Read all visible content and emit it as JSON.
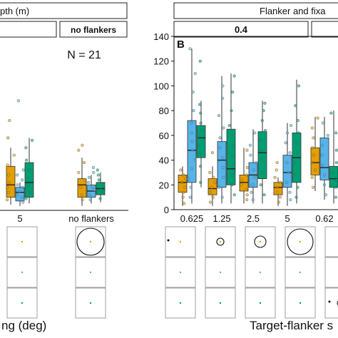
{
  "chart_data": [
    {
      "type": "box",
      "panel": "left",
      "strip_title": "pth (m)",
      "facets": [
        "no flankers"
      ],
      "annotation": "N = 21",
      "categories": [
        "5",
        "no flankers"
      ],
      "xlabel": "ng (deg)",
      "boxes": [
        {
          "category": "5",
          "fill": "orange",
          "q1": 10,
          "median": 20,
          "q3": 35,
          "whisker_low": 4,
          "whisker_high": 50,
          "points": [
            8,
            14,
            18,
            22,
            28,
            36,
            44,
            58,
            72
          ]
        },
        {
          "category": "5",
          "fill": "blue",
          "q1": 7,
          "median": 14,
          "q3": 18,
          "whisker_low": 3,
          "whisker_high": 22,
          "points": [
            6,
            10,
            12,
            15,
            18,
            20,
            24,
            28,
            32,
            88
          ]
        },
        {
          "category": "5",
          "fill": "green",
          "q1": 10,
          "median": 22,
          "q3": 38,
          "whisker_low": 5,
          "whisker_high": 58,
          "points": [
            9,
            14,
            20,
            26,
            32,
            40,
            50,
            56
          ]
        },
        {
          "category": "no flankers",
          "fill": "orange",
          "q1": 10,
          "median": 20,
          "q3": 25,
          "whisker_low": 3,
          "whisker_high": 42,
          "points": [
            8,
            12,
            18,
            24,
            30,
            38,
            48,
            52
          ]
        },
        {
          "category": "no flankers",
          "fill": "blue",
          "q1": 10,
          "median": 15,
          "q3": 20,
          "whisker_low": 5,
          "whisker_high": 28,
          "points": [
            8,
            12,
            16,
            18,
            22,
            26,
            30,
            34
          ]
        },
        {
          "category": "no flankers",
          "fill": "green",
          "q1": 12,
          "median": 17,
          "q3": 22,
          "whisker_low": 6,
          "whisker_high": 30,
          "points": [
            9,
            13,
            16,
            20,
            24,
            28,
            32
          ]
        }
      ]
    },
    {
      "type": "box",
      "panel": "right",
      "panel_label": "B",
      "strip_title": "Flanker and fixa",
      "facets": [
        "0.4"
      ],
      "categories": [
        "0.625",
        "1.25",
        "2.5",
        "5",
        "0.62"
      ],
      "xlabel": "Target-flanker s",
      "ylim": [
        0,
        140
      ],
      "yticks": [
        0,
        20,
        40,
        60,
        80,
        100,
        120,
        140
      ],
      "boxes": [
        {
          "category": "0.625",
          "fill": "orange",
          "q1": 14,
          "median": 22,
          "q3": 28,
          "whisker_low": 3,
          "whisker_high": 35,
          "points": [
            5,
            10,
            14,
            18,
            22,
            25,
            28,
            32
          ]
        },
        {
          "category": "0.625",
          "fill": "blue",
          "q1": 22,
          "median": 48,
          "q3": 72,
          "whisker_low": 5,
          "whisker_high": 130,
          "points": [
            10,
            18,
            25,
            33,
            40,
            48,
            55,
            62,
            70,
            80,
            95,
            110,
            130
          ]
        },
        {
          "category": "0.625",
          "fill": "green",
          "q1": 42,
          "median": 58,
          "q3": 68,
          "whisker_low": 18,
          "whisker_high": 88,
          "points": [
            22,
            35,
            45,
            52,
            58,
            64,
            70,
            78,
            85,
            120
          ]
        },
        {
          "category": "1.25",
          "fill": "orange",
          "q1": 12,
          "median": 17,
          "q3": 25,
          "whisker_low": 3,
          "whisker_high": 35,
          "points": [
            6,
            10,
            14,
            18,
            22,
            26,
            30,
            46
          ]
        },
        {
          "category": "1.25",
          "fill": "blue",
          "q1": 18,
          "median": 40,
          "q3": 55,
          "whisker_low": 5,
          "whisker_high": 108,
          "points": [
            10,
            18,
            26,
            34,
            42,
            50,
            58,
            66,
            76,
            90,
            100
          ]
        },
        {
          "category": "1.25",
          "fill": "green",
          "q1": 20,
          "median": 33,
          "q3": 65,
          "whisker_low": 5,
          "whisker_high": 110,
          "points": [
            12,
            20,
            28,
            36,
            44,
            52,
            60,
            68,
            80,
            95,
            108
          ]
        },
        {
          "category": "2.5",
          "fill": "orange",
          "q1": 15,
          "median": 22,
          "q3": 28,
          "whisker_low": 5,
          "whisker_high": 50,
          "points": [
            8,
            12,
            16,
            20,
            24,
            28,
            34,
            48
          ]
        },
        {
          "category": "2.5",
          "fill": "blue",
          "q1": 18,
          "median": 28,
          "q3": 38,
          "whisker_low": 5,
          "whisker_high": 65,
          "points": [
            8,
            14,
            20,
            26,
            32,
            38,
            44,
            52,
            62
          ]
        },
        {
          "category": "2.5",
          "fill": "green",
          "q1": 25,
          "median": 46,
          "q3": 63,
          "whisker_low": 5,
          "whisker_high": 88,
          "points": [
            12,
            20,
            30,
            40,
            48,
            56,
            64,
            72,
            80,
            86
          ]
        },
        {
          "category": "5",
          "fill": "orange",
          "q1": 12,
          "median": 18,
          "q3": 22,
          "whisker_low": 3,
          "whisker_high": 26,
          "points": [
            6,
            10,
            14,
            18,
            22,
            26,
            32,
            38
          ]
        },
        {
          "category": "5",
          "fill": "blue",
          "q1": 18,
          "median": 30,
          "q3": 44,
          "whisker_low": 3,
          "whisker_high": 70,
          "points": [
            8,
            14,
            22,
            30,
            38,
            46,
            54,
            62,
            68
          ]
        },
        {
          "category": "5",
          "fill": "green",
          "q1": 22,
          "median": 42,
          "q3": 62,
          "whisker_low": 5,
          "whisker_high": 105,
          "points": [
            10,
            18,
            28,
            38,
            46,
            54,
            62,
            72,
            84,
            100
          ]
        },
        {
          "category": "0.62",
          "fill": "orange",
          "q1": 28,
          "median": 38,
          "q3": 50,
          "whisker_low": 15,
          "whisker_high": 75,
          "points": [
            18,
            26,
            32,
            38,
            44,
            50,
            58,
            66,
            74
          ]
        },
        {
          "category": "0.62",
          "fill": "blue",
          "q1": 24,
          "median": 34,
          "q3": 58,
          "whisker_low": 8,
          "whisker_high": 75,
          "points": [
            12,
            20,
            28,
            36,
            44,
            52,
            60,
            70
          ]
        },
        {
          "category": "0.62",
          "fill": "green",
          "q1": 18,
          "median": 25,
          "q3": 35,
          "whisker_low": 5,
          "whisker_high": 80,
          "points": [
            10,
            18,
            24,
            30,
            38,
            48,
            62,
            78
          ]
        }
      ]
    }
  ],
  "colors": {
    "orange": "#e69f00",
    "blue": "#56b4e9",
    "green": "#009e73",
    "strip_bg": "#ffffff",
    "axis": "#111111"
  }
}
